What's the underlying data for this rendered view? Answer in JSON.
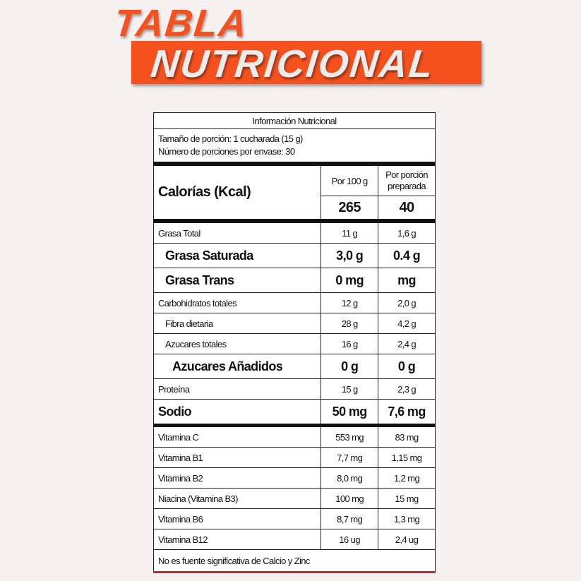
{
  "heading": {
    "line1": "TABLA",
    "line2": "NUTRICIONAL",
    "accent": "#f4511e"
  },
  "label": {
    "title": "Información Nutricional",
    "serving_size": "Tamaño de porción: 1 cucharada (15 g)",
    "servings": "Número de porciones por envase: 30",
    "calories_label": "Calorías (Kcal)",
    "col1": "Por 100 g",
    "col2": "Por porción preparada",
    "calories_100g": "265",
    "calories_portion": "40",
    "rows": [
      {
        "name": "Grasa Total",
        "v1": "11 g",
        "v2": "1,6 g",
        "style": ""
      },
      {
        "name": "Grasa Saturada",
        "v1": "3,0 g",
        "v2": "0.4 g",
        "style": "big indent"
      },
      {
        "name": "Grasa Trans",
        "v1": "0 mg",
        "v2": "mg",
        "style": "big indent"
      },
      {
        "name": "Carbohidratos totales",
        "v1": "12 g",
        "v2": "2,0 g",
        "style": ""
      },
      {
        "name": "Fibra dietaria",
        "v1": "28 g",
        "v2": "4,2 g",
        "style": "indent"
      },
      {
        "name": "Azucares totales",
        "v1": "16 g",
        "v2": "2,4  g",
        "style": "indent"
      },
      {
        "name": "Azucares Añadidos",
        "v1": "0 g",
        "v2": "0 g",
        "style": "big indent2"
      },
      {
        "name": "Proteína",
        "v1": "15 g",
        "v2": "2,3 g",
        "style": ""
      },
      {
        "name": "Sodio",
        "v1": "50 mg",
        "v2": "7,6 mg",
        "style": "big thick"
      },
      {
        "name": "Vitamina C",
        "v1": "553 mg",
        "v2": "83 mg",
        "style": ""
      },
      {
        "name": "Vitamina B1",
        "v1": "7,7 mg",
        "v2": "1,15 mg",
        "style": ""
      },
      {
        "name": "Vitamina B2",
        "v1": "8,0 mg",
        "v2": "1,2 mg",
        "style": ""
      },
      {
        "name": "Niacina (Vitamina B3)",
        "v1": "100 mg",
        "v2": "15 mg",
        "style": ""
      },
      {
        "name": "Vitamina B6",
        "v1": "8,7 mg",
        "v2": "1,3 mg",
        "style": ""
      },
      {
        "name": "Vitamina B12",
        "v1": "16 ug",
        "v2": "2,4 ug",
        "style": ""
      }
    ],
    "footnote": "No es fuente significativa de Calcio y Zinc"
  }
}
